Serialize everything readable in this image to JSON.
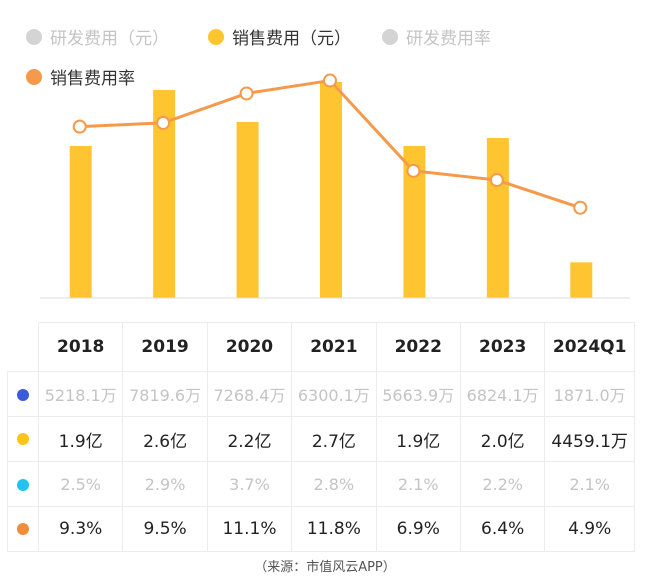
{
  "legend": [
    {
      "label": "研发费用（元）",
      "active": false
    },
    {
      "label": "销售费用（元）",
      "active": true,
      "color": "#ffc531"
    },
    {
      "label": "研发费用率",
      "active": false
    },
    {
      "label": "销售费用率",
      "active": true,
      "color": "#f49a4a"
    }
  ],
  "chart_data": {
    "type": "bar",
    "categories": [
      "2018",
      "2019",
      "2020",
      "2021",
      "2022",
      "2023",
      "2024Q1"
    ],
    "series": [
      {
        "name": "研发费用（元）",
        "type": "bar",
        "visible": false,
        "values": [
          5218.1,
          7819.6,
          7268.4,
          6300.1,
          5663.9,
          6824.1,
          1871.0
        ],
        "unit": "万",
        "labels": [
          "5218.1万",
          "7819.6万",
          "7268.4万",
          "6300.1万",
          "5663.9万",
          "6824.1万",
          "1871.0万"
        ]
      },
      {
        "name": "销售费用（元）",
        "type": "bar",
        "visible": true,
        "values": [
          19000,
          26000,
          22000,
          27000,
          19000,
          20000,
          4459.1
        ],
        "unit": "万",
        "labels": [
          "1.9亿",
          "2.6亿",
          "2.2亿",
          "2.7亿",
          "1.9亿",
          "2.0亿",
          "4459.1万"
        ]
      },
      {
        "name": "研发费用率",
        "type": "line",
        "visible": false,
        "values": [
          2.5,
          2.9,
          3.7,
          2.8,
          2.1,
          2.2,
          2.1
        ],
        "unit": "%",
        "labels": [
          "2.5%",
          "2.9%",
          "3.7%",
          "2.8%",
          "2.1%",
          "2.2%",
          "2.1%"
        ]
      },
      {
        "name": "销售费用率",
        "type": "line",
        "visible": true,
        "values": [
          9.3,
          9.5,
          11.1,
          11.8,
          6.9,
          6.4,
          4.9
        ],
        "unit": "%",
        "labels": [
          "9.3%",
          "9.5%",
          "11.1%",
          "11.8%",
          "6.9%",
          "6.4%",
          "4.9%"
        ]
      }
    ],
    "colors": {
      "bar": "#ffc531",
      "line": "#f49a4a",
      "axis": "#dddddd"
    },
    "row_dot_colors": [
      "#3b5bdb",
      "#fcc419",
      "#22c3f0",
      "#f08c3a"
    ]
  },
  "source": "（来源：市值风云APP）"
}
